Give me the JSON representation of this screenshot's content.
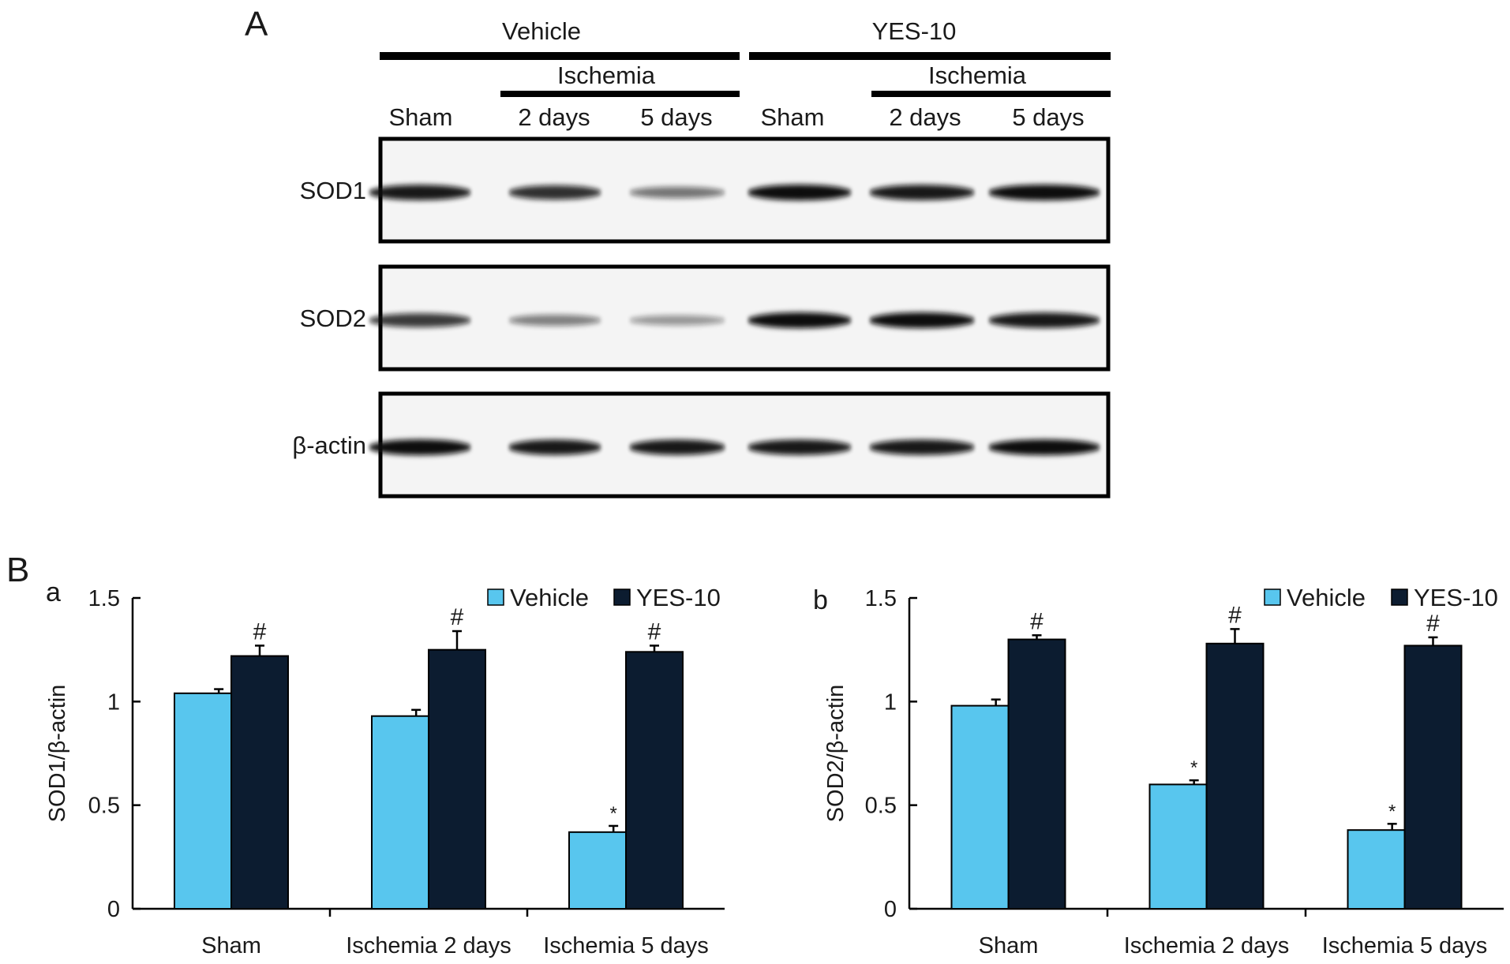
{
  "panel_a": {
    "label": "A",
    "group_labels": [
      "Vehicle",
      "YES-10"
    ],
    "ischemia_label": "Ischemia",
    "lane_labels": [
      "Sham",
      "2 days",
      "5 days",
      "Sham",
      "2 days",
      "5 days"
    ],
    "blots": [
      {
        "label": "SOD1",
        "intensities": [
          0.95,
          0.85,
          0.55,
          1.0,
          0.95,
          1.0
        ]
      },
      {
        "label": "SOD2",
        "intensities": [
          0.8,
          0.5,
          0.4,
          1.0,
          1.0,
          0.95
        ]
      },
      {
        "label": "β-actin",
        "intensities": [
          1.0,
          0.95,
          0.95,
          0.95,
          0.95,
          1.0
        ]
      }
    ]
  },
  "panel_b": {
    "label": "B"
  },
  "colors": {
    "vehicle": "#58c6ee",
    "yes10": "#0c1c30"
  },
  "chart_data": [
    {
      "type": "bar",
      "panel": "a",
      "categories": [
        "Sham",
        "Ischemia 2 days",
        "Ischemia 5 days"
      ],
      "series": [
        {
          "name": "Vehicle",
          "values": [
            1.04,
            0.93,
            0.37
          ],
          "errors": [
            0.02,
            0.03,
            0.03
          ],
          "marks": [
            "",
            "",
            "*"
          ]
        },
        {
          "name": "YES-10",
          "values": [
            1.22,
            1.25,
            1.24
          ],
          "errors": [
            0.05,
            0.09,
            0.03
          ],
          "marks": [
            "#",
            "#",
            "#"
          ]
        }
      ],
      "ylabel": "SOD1/β-actin",
      "ylim": [
        0,
        1.5
      ],
      "yticks": [
        "0",
        "0.5",
        "1",
        "1.5"
      ],
      "legend": "top-right"
    },
    {
      "type": "bar",
      "panel": "b",
      "categories": [
        "Sham",
        "Ischemia 2 days",
        "Ischemia 5 days"
      ],
      "series": [
        {
          "name": "Vehicle",
          "values": [
            0.98,
            0.6,
            0.38
          ],
          "errors": [
            0.03,
            0.02,
            0.03
          ],
          "marks": [
            "",
            "*",
            "*"
          ]
        },
        {
          "name": "YES-10",
          "values": [
            1.3,
            1.28,
            1.27
          ],
          "errors": [
            0.02,
            0.07,
            0.04
          ],
          "marks": [
            "#",
            "#",
            "#"
          ]
        }
      ],
      "ylabel": "SOD2/β-actin",
      "ylim": [
        0,
        1.5
      ],
      "yticks": [
        "0",
        "0.5",
        "1",
        "1.5"
      ],
      "legend": "top-right"
    }
  ]
}
